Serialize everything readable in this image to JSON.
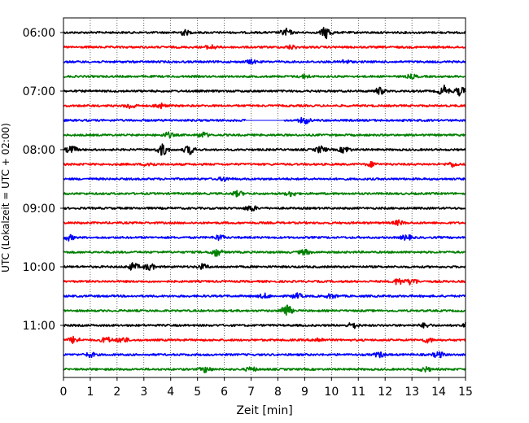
{
  "chart_data": {
    "type": "line",
    "xlabel": "Zeit  [min]",
    "ylabel": "UTC (Lokalzeit = UTC + 02:00)",
    "xlim": [
      0,
      15
    ],
    "x_ticks": [
      0,
      1,
      2,
      3,
      4,
      5,
      6,
      7,
      8,
      9,
      10,
      11,
      12,
      13,
      14,
      15
    ],
    "y_tick_labels": [
      "06:00",
      "07:00",
      "08:00",
      "09:00",
      "10:00",
      "11:00"
    ],
    "y_tick_rows": [
      0,
      4,
      8,
      12,
      16,
      20
    ],
    "grid": "vertical-dotted",
    "trace_colors": [
      "#000000",
      "#ff0000",
      "#0000ff",
      "#008000"
    ],
    "rows": [
      {
        "start": "06:00",
        "color": "#000000",
        "bursts": [
          [
            4.5,
            0.35
          ],
          [
            8.3,
            0.5
          ],
          [
            9.8,
            0.8
          ]
        ]
      },
      {
        "start": "06:15",
        "color": "#ff0000",
        "bursts": [
          [
            5.5,
            0.3
          ],
          [
            8.5,
            0.25
          ]
        ]
      },
      {
        "start": "06:30",
        "color": "#0000ff",
        "bursts": [
          [
            7.0,
            0.25
          ],
          [
            10.5,
            0.25
          ]
        ]
      },
      {
        "start": "06:45",
        "color": "#008000",
        "bursts": [
          [
            9.0,
            0.25
          ],
          [
            13.0,
            0.25
          ]
        ]
      },
      {
        "start": "07:00",
        "color": "#000000",
        "bursts": [
          [
            11.8,
            0.45
          ],
          [
            14.2,
            0.7
          ],
          [
            14.8,
            0.6
          ]
        ]
      },
      {
        "start": "07:15",
        "color": "#ff0000",
        "bursts": [
          [
            2.5,
            0.4
          ],
          [
            3.6,
            0.35
          ]
        ]
      },
      {
        "start": "07:30",
        "color": "#0000ff",
        "bursts": [
          [
            9.0,
            0.45
          ]
        ],
        "gap": [
          6.8,
          8.2
        ]
      },
      {
        "start": "07:45",
        "color": "#008000",
        "bursts": [
          [
            3.9,
            0.35
          ],
          [
            5.2,
            0.35
          ]
        ]
      },
      {
        "start": "08:00",
        "color": "#000000",
        "bursts": [
          [
            0.3,
            0.5
          ],
          [
            3.7,
            0.8
          ],
          [
            4.7,
            0.6
          ],
          [
            9.6,
            0.45
          ],
          [
            10.5,
            0.45
          ]
        ]
      },
      {
        "start": "08:15",
        "color": "#ff0000",
        "bursts": [
          [
            3.2,
            0.3
          ],
          [
            11.5,
            0.3
          ],
          [
            14.5,
            0.3
          ]
        ]
      },
      {
        "start": "08:30",
        "color": "#0000ff",
        "bursts": [
          [
            6.0,
            0.25
          ]
        ]
      },
      {
        "start": "08:45",
        "color": "#008000",
        "bursts": [
          [
            6.5,
            0.35
          ],
          [
            8.5,
            0.35
          ]
        ]
      },
      {
        "start": "09:00",
        "color": "#000000",
        "bursts": [
          [
            7.0,
            0.4
          ]
        ]
      },
      {
        "start": "09:15",
        "color": "#ff0000",
        "bursts": [
          [
            12.5,
            0.3
          ]
        ]
      },
      {
        "start": "09:30",
        "color": "#0000ff",
        "bursts": [
          [
            0.2,
            0.35
          ],
          [
            5.8,
            0.35
          ],
          [
            12.8,
            0.35
          ]
        ]
      },
      {
        "start": "09:45",
        "color": "#008000",
        "bursts": [
          [
            5.7,
            0.55
          ],
          [
            9.0,
            0.35
          ]
        ]
      },
      {
        "start": "10:00",
        "color": "#000000",
        "bursts": [
          [
            2.6,
            0.5
          ],
          [
            3.2,
            0.45
          ],
          [
            5.2,
            0.35
          ]
        ]
      },
      {
        "start": "10:15",
        "color": "#ff0000",
        "bursts": [
          [
            12.5,
            0.45
          ],
          [
            13.0,
            0.45
          ]
        ]
      },
      {
        "start": "10:30",
        "color": "#0000ff",
        "bursts": [
          [
            7.5,
            0.3
          ],
          [
            8.7,
            0.35
          ],
          [
            10.0,
            0.3
          ]
        ]
      },
      {
        "start": "10:45",
        "color": "#008000",
        "bursts": [
          [
            8.3,
            0.9
          ]
        ]
      },
      {
        "start": "11:00",
        "color": "#000000",
        "bursts": [
          [
            10.8,
            0.4
          ],
          [
            13.5,
            0.3
          ],
          [
            15.0,
            0.35
          ]
        ]
      },
      {
        "start": "11:15",
        "color": "#ff0000",
        "bursts": [
          [
            0.4,
            0.45
          ],
          [
            1.6,
            0.4
          ],
          [
            2.2,
            0.4
          ],
          [
            9.5,
            0.3
          ],
          [
            13.6,
            0.3
          ]
        ]
      },
      {
        "start": "11:30",
        "color": "#0000ff",
        "bursts": [
          [
            1.0,
            0.3
          ],
          [
            11.8,
            0.35
          ],
          [
            14.0,
            0.4
          ]
        ]
      },
      {
        "start": "11:45",
        "color": "#008000",
        "bursts": [
          [
            5.3,
            0.4
          ],
          [
            7.0,
            0.3
          ],
          [
            13.5,
            0.3
          ]
        ]
      }
    ]
  }
}
